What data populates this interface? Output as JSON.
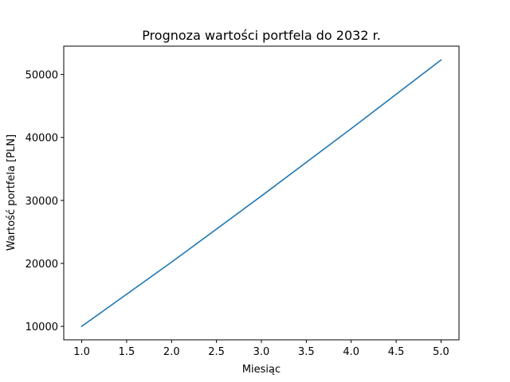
{
  "chart_data": {
    "type": "line",
    "title": "Prognoza wartości portfela do 2032 r.",
    "xlabel": "Miesiąc",
    "ylabel": "Wartość portfela [PLN]",
    "xlim": [
      0.8,
      5.2
    ],
    "ylim": [
      7860,
      54500
    ],
    "xticks": [
      1.0,
      1.5,
      2.0,
      2.5,
      3.0,
      3.5,
      4.0,
      4.5,
      5.0
    ],
    "xtick_labels": [
      "1.0",
      "1.5",
      "2.0",
      "2.5",
      "3.0",
      "3.5",
      "4.0",
      "4.5",
      "5.0"
    ],
    "yticks": [
      10000,
      20000,
      30000,
      40000,
      50000
    ],
    "ytick_labels": [
      "10000",
      "20000",
      "30000",
      "40000",
      "50000"
    ],
    "grid": false,
    "series": [
      {
        "color": "#1f77b4",
        "x": [
          1,
          2,
          3,
          4,
          5
        ],
        "y": [
          10000,
          20200,
          30700,
          41400,
          52300
        ]
      }
    ]
  }
}
